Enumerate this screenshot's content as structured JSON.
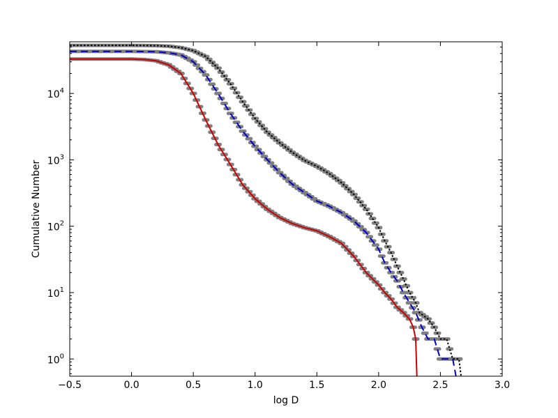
{
  "chart_data": {
    "type": "line",
    "title": "",
    "xlabel": "log D",
    "ylabel": "Cumulative Number",
    "xscale": "linear",
    "yscale": "log",
    "xlim": [
      -0.5,
      3.0
    ],
    "ylim": [
      0.55,
      60000
    ],
    "grid": false,
    "legend": "none",
    "x_ticks": [
      -0.5,
      0.0,
      0.5,
      1.0,
      1.5,
      2.0,
      2.5,
      3.0
    ],
    "x_tick_labels": [
      "−0.5",
      "0.0",
      "0.5",
      "1.0",
      "1.5",
      "2.0",
      "2.5",
      "3.0"
    ],
    "y_ticks": [
      1,
      10,
      100,
      1000,
      10000
    ],
    "y_tick_labels": [
      {
        "base": "10",
        "exp": "0"
      },
      {
        "base": "10",
        "exp": "1"
      },
      {
        "base": "10",
        "exp": "2"
      },
      {
        "base": "10",
        "exp": "3"
      },
      {
        "base": "10",
        "exp": "4"
      }
    ],
    "series": [
      {
        "color": "#000000",
        "style": "dotted",
        "markers_color": "#808080",
        "x": [
          -0.5,
          0.0,
          0.2,
          0.3,
          0.4,
          0.5,
          0.6,
          0.7,
          0.8,
          0.9,
          1.0,
          1.1,
          1.2,
          1.3,
          1.4,
          1.5,
          1.6,
          1.7,
          1.8,
          1.9,
          2.0,
          2.05,
          2.1,
          2.15,
          2.2,
          2.25,
          2.3,
          2.33,
          2.4,
          2.45,
          2.5,
          2.55,
          2.6,
          2.65,
          2.67
        ],
        "y": [
          53000,
          53000,
          52500,
          51500,
          49000,
          44000,
          36000,
          24000,
          14000,
          7500,
          4200,
          2600,
          1800,
          1300,
          980,
          800,
          620,
          450,
          300,
          180,
          95,
          60,
          40,
          25,
          16,
          10,
          7,
          5,
          4,
          3,
          2,
          2,
          1,
          1,
          0.5
        ]
      },
      {
        "color": "#0000cc",
        "style": "dashed",
        "markers_color": "#808080",
        "x": [
          -0.5,
          0.0,
          0.2,
          0.3,
          0.4,
          0.5,
          0.6,
          0.7,
          0.8,
          0.9,
          1.0,
          1.1,
          1.2,
          1.3,
          1.4,
          1.5,
          1.6,
          1.7,
          1.8,
          1.9,
          2.0,
          2.05,
          2.1,
          2.15,
          2.2,
          2.25,
          2.3,
          2.35,
          2.4,
          2.45,
          2.5,
          2.55,
          2.6,
          2.63
        ],
        "y": [
          43000,
          43000,
          42500,
          41000,
          38000,
          30000,
          19000,
          10000,
          5000,
          2700,
          1600,
          1000,
          640,
          430,
          320,
          240,
          200,
          160,
          120,
          80,
          45,
          28,
          20,
          15,
          10,
          7,
          5,
          3,
          2,
          2,
          1,
          1,
          1,
          0.5
        ]
      },
      {
        "color": "#cc0000",
        "style": "solid",
        "markers_color": "#808080",
        "x": [
          -0.5,
          0.0,
          0.1,
          0.2,
          0.3,
          0.4,
          0.5,
          0.6,
          0.7,
          0.8,
          0.9,
          1.0,
          1.1,
          1.2,
          1.3,
          1.4,
          1.5,
          1.6,
          1.7,
          1.8,
          1.9,
          2.0,
          2.05,
          2.1,
          2.15,
          2.2,
          2.25,
          2.28,
          2.3,
          2.31
        ],
        "y": [
          33000,
          33000,
          32500,
          31000,
          27000,
          20000,
          10000,
          4000,
          1700,
          850,
          420,
          260,
          180,
          135,
          110,
          95,
          85,
          70,
          55,
          35,
          20,
          13,
          10,
          8,
          6,
          5,
          4,
          3,
          2,
          0.5
        ]
      }
    ]
  }
}
